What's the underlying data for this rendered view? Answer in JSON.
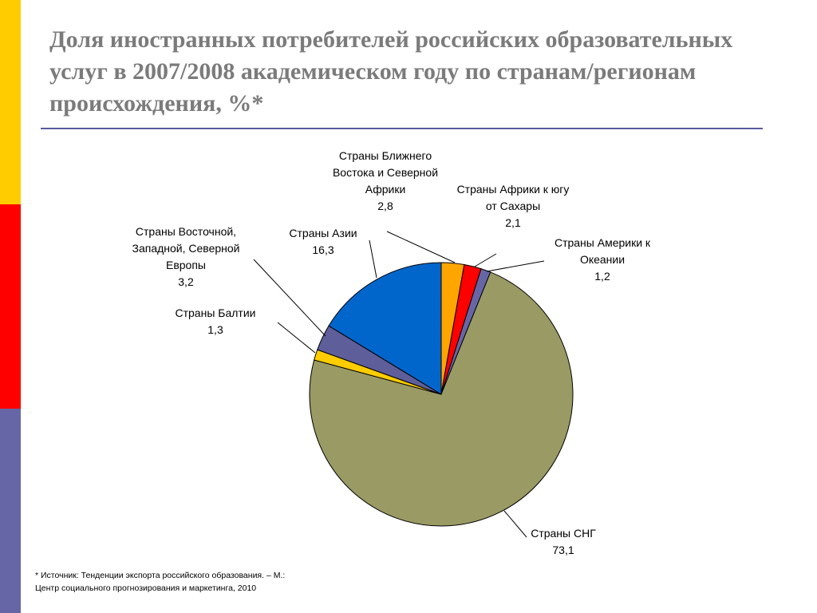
{
  "colors": {
    "bar_top": "#ffcc00",
    "bar_mid": "#ff0000",
    "bar_bottom": "#6666a6",
    "title_text": "#7b7b7b",
    "rule": "#5a5aa0"
  },
  "slide": {
    "title": "Доля иностранных потребителей российских образовательных услуг в 2007/2008 академическом году по странам/регионам происхождения, %*",
    "footnote_line1": "* Источник: Тенденции экспорта российского образования. – М.:",
    "footnote_line2": "Центр социального прогнозирования и маркетинга, 2010"
  },
  "chart_data": {
    "type": "pie",
    "title": "",
    "slices": [
      {
        "label_lines": [
          "Страны Ближнего",
          "Востока и Северной",
          "Африки"
        ],
        "value": 2.8,
        "value_text": "2,8",
        "color": "#ffa500"
      },
      {
        "label_lines": [
          "Страны Африки к югу",
          "от Сахары"
        ],
        "value": 2.1,
        "value_text": "2,1",
        "color": "#ff0000"
      },
      {
        "label_lines": [
          "Страны Америки к",
          "Океании"
        ],
        "value": 1.2,
        "value_text": "1,2",
        "color": "#6666a6"
      },
      {
        "label_lines": [
          "Страны СНГ"
        ],
        "value": 73.1,
        "value_text": "73,1",
        "color": "#9a9a64"
      },
      {
        "label_lines": [
          "Страны Балтии"
        ],
        "value": 1.3,
        "value_text": "1,3",
        "color": "#ffcc00"
      },
      {
        "label_lines": [
          "Страны Восточной,",
          "Западной, Северной",
          "Европы"
        ],
        "value": 3.2,
        "value_text": "3,2",
        "color": "#5e5e9a"
      },
      {
        "label_lines": [
          "Страны Азии"
        ],
        "value": 16.3,
        "value_text": "16,3",
        "color": "#0066cc"
      }
    ]
  }
}
